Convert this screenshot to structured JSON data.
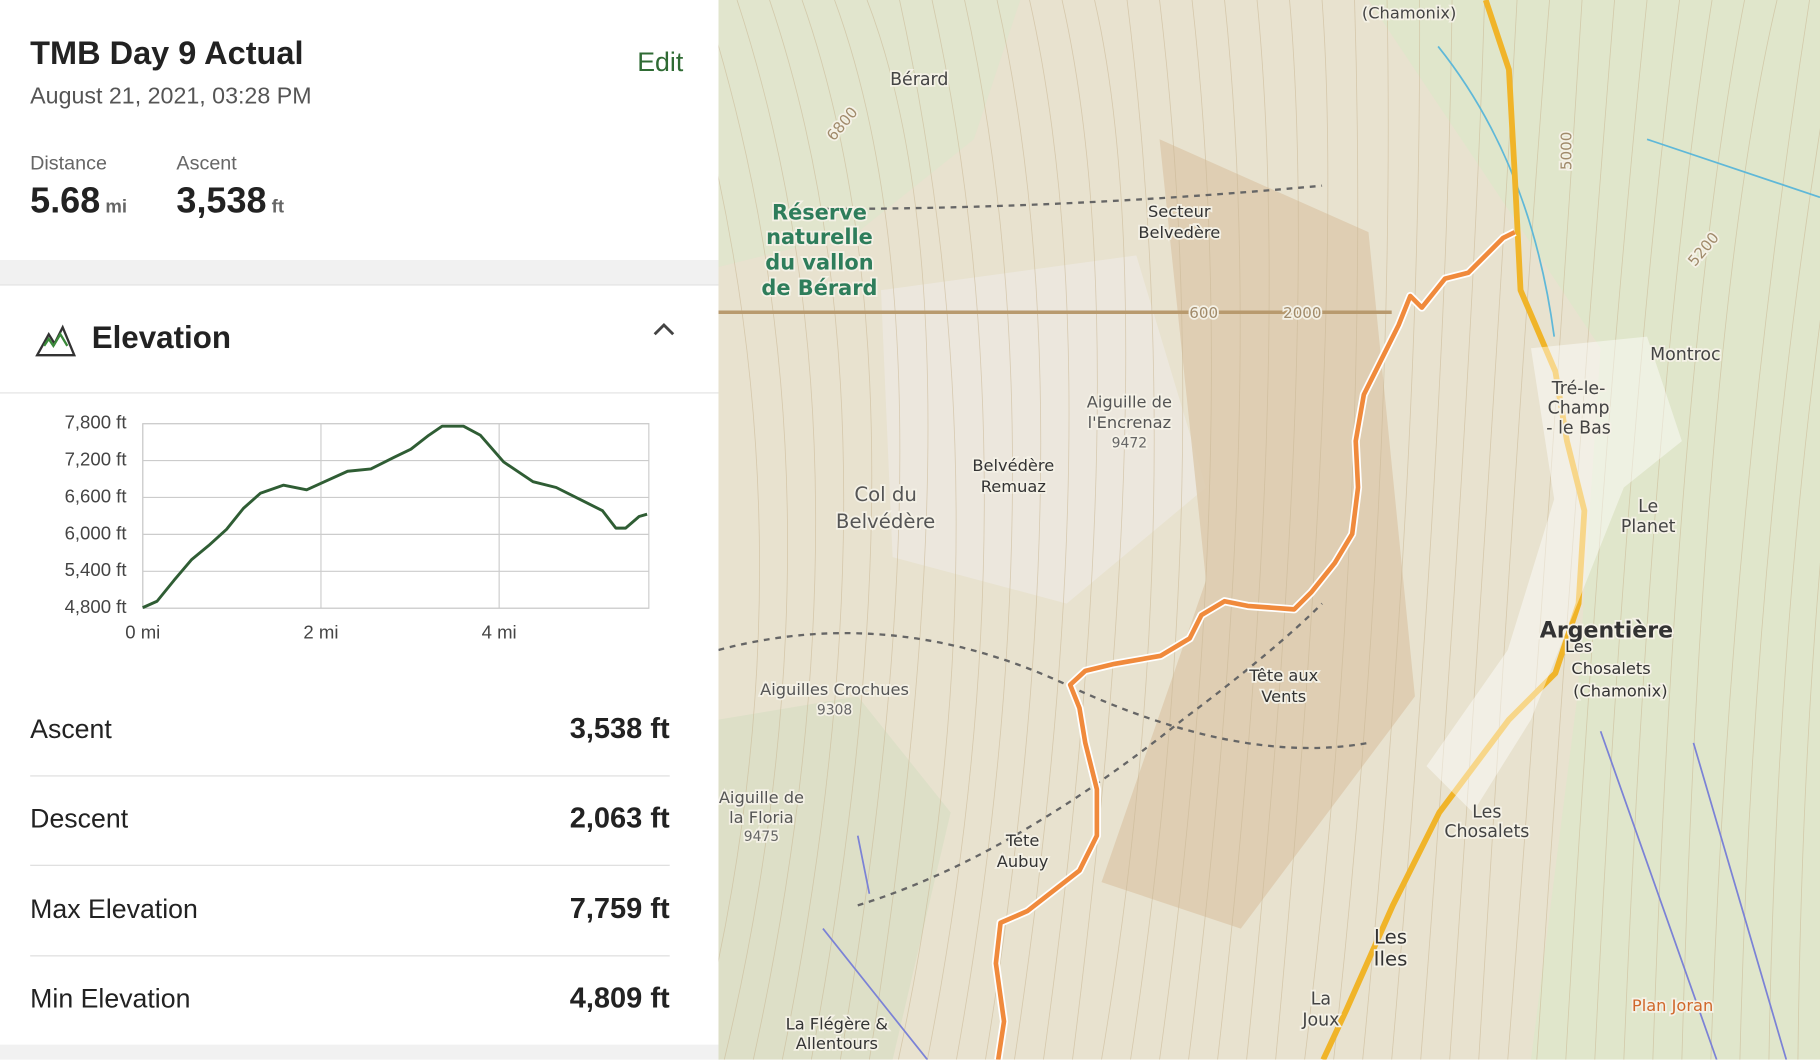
{
  "header": {
    "title": "TMB Day 9 Actual",
    "date": "August 21, 2021, 03:28 PM",
    "edit": "Edit"
  },
  "summary": [
    {
      "label": "Distance",
      "value": "5.68",
      "unit": "mi"
    },
    {
      "label": "Ascent",
      "value": "3,538",
      "unit": "ft"
    }
  ],
  "elevation": {
    "title": "Elevation"
  },
  "chart_data": {
    "type": "line",
    "color": "#2f5d34",
    "x": [
      0,
      0.16,
      0.35,
      0.55,
      0.74,
      0.94,
      1.13,
      1.32,
      1.58,
      1.84,
      2.04,
      2.3,
      2.56,
      2.82,
      3.01,
      3.21,
      3.36,
      3.6,
      3.79,
      4.05,
      4.38,
      4.64,
      4.9,
      5.16,
      5.31,
      5.42,
      5.57,
      5.66
    ],
    "values": [
      4809,
      4913,
      5253,
      5592,
      5819,
      6083,
      6423,
      6668,
      6800,
      6725,
      6857,
      7026,
      7064,
      7253,
      7385,
      7611,
      7759,
      7759,
      7611,
      7177,
      6857,
      6762,
      6574,
      6385,
      6102,
      6102,
      6290,
      6328
    ],
    "xlim": [
      0,
      5.68
    ],
    "ylim": [
      4800,
      7800
    ],
    "xticks": [
      {
        "value": 0,
        "label": "0 mi"
      },
      {
        "value": 2,
        "label": "2 mi"
      },
      {
        "value": 4,
        "label": "4 mi"
      }
    ],
    "yticks": [
      {
        "value": 4800,
        "label": "4,800 ft"
      },
      {
        "value": 5400,
        "label": "5,400 ft"
      },
      {
        "value": 6000,
        "label": "6,000 ft"
      },
      {
        "value": 6600,
        "label": "6,600 ft"
      },
      {
        "value": 7200,
        "label": "7,200 ft"
      },
      {
        "value": 7800,
        "label": "7,800 ft"
      }
    ],
    "grid": true
  },
  "stats": [
    {
      "label": "Ascent",
      "value": "3,538 ft"
    },
    {
      "label": "Descent",
      "value": "2,063 ft"
    },
    {
      "label": "Max Elevation",
      "value": "7,759 ft"
    },
    {
      "label": "Min Elevation",
      "value": "4,809 ft"
    }
  ],
  "map": {
    "labels": [
      "(Chamonix)",
      "Bérard",
      "6800",
      "Réserve",
      "naturelle",
      "du vallon",
      "de Bérard",
      "Secteur",
      "Belvedère",
      "600",
      "2000",
      "Aiguille de",
      "l'Encrenaz",
      "9472",
      "Belvédère",
      "Remuaz",
      "Col du",
      "Belvédère",
      "Montroc",
      "Tré-le-",
      "Champ",
      "- le Bas",
      "Le",
      "Planet",
      "Argentière",
      "Les",
      "Chosalets",
      "(Chamonix)",
      "Tête aux",
      "Vents",
      "Aiguilles Crochues",
      "9308",
      "Aiguille de",
      "la Floria",
      "9475",
      "Tete",
      "Aubuy",
      "Les",
      "Chosalets",
      "Les",
      "Iles",
      "La",
      "Joux",
      "La Flégère &",
      "Allentours",
      "Plan Joran",
      "5000",
      "5200"
    ]
  }
}
